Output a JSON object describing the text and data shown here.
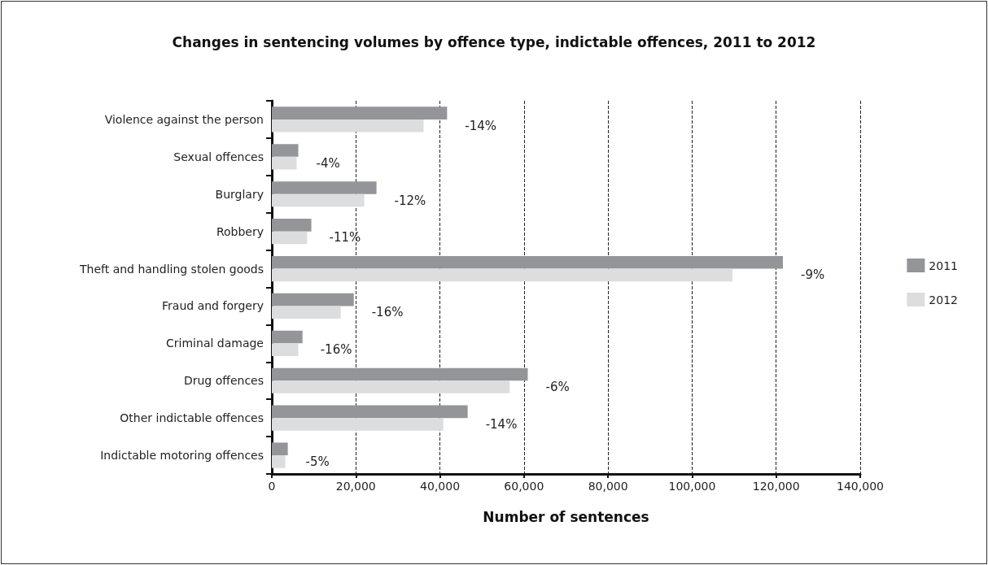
{
  "chart_data": {
    "type": "bar",
    "orientation": "horizontal",
    "title": "Changes in sentencing volumes by offence type, indictable offences, 2011 to 2012",
    "xlabel": "Number of sentences",
    "categories": [
      "Violence against the person",
      "Sexual offences",
      "Burglary",
      "Robbery",
      "Theft and handling stolen goods",
      "Fraud and forgery",
      "Criminal damage",
      "Drug offences",
      "Other indictable offences",
      "Indictable motoring offences"
    ],
    "series": [
      {
        "name": "2011",
        "color": "#939598",
        "values": [
          41700,
          6300,
          24900,
          9400,
          121600,
          19500,
          7300,
          60900,
          46600,
          3800
        ]
      },
      {
        "name": "2012",
        "color": "#dcddde",
        "values": [
          36100,
          5900,
          22000,
          8400,
          109600,
          16400,
          6300,
          56600,
          40800,
          3200
        ]
      }
    ],
    "xlim": [
      0,
      140000
    ],
    "xticks": [
      0,
      {
        "value": 20000,
        "label": "20,000"
      },
      {
        "value": 40000,
        "label": "40,000"
      },
      {
        "value": 60000,
        "label": "60,000"
      },
      {
        "value": 80000,
        "label": "80,000"
      },
      {
        "value": 100000,
        "label": "100,000"
      },
      {
        "value": 120000,
        "label": "120,000"
      },
      {
        "value": 140000,
        "label": "140,000"
      }
    ],
    "grid": "x",
    "legend": "right",
    "annotations": [
      {
        "text": "-14%",
        "x": 41700,
        "y": "Violence against the person"
      },
      {
        "text": "-4%",
        "x": 6300,
        "y": "Sexual offences"
      },
      {
        "text": "-12%",
        "x": 24900,
        "y": "Burglary"
      },
      {
        "text": "-11%",
        "x": 9400,
        "y": "Robbery"
      },
      {
        "text": "-9%",
        "x": 121600,
        "y": "Theft and handling stolen goods"
      },
      {
        "text": "-16%",
        "x": 19500,
        "y": "Fraud and forgery"
      },
      {
        "text": "-16%",
        "x": 7300,
        "y": "Criminal damage"
      },
      {
        "text": "-6%",
        "x": 60900,
        "y": "Drug offences"
      },
      {
        "text": "-14%",
        "x": 46600,
        "y": "Other indictable offences"
      },
      {
        "text": "-5%",
        "x": 3800,
        "y": "Indictable motoring offences"
      }
    ]
  }
}
